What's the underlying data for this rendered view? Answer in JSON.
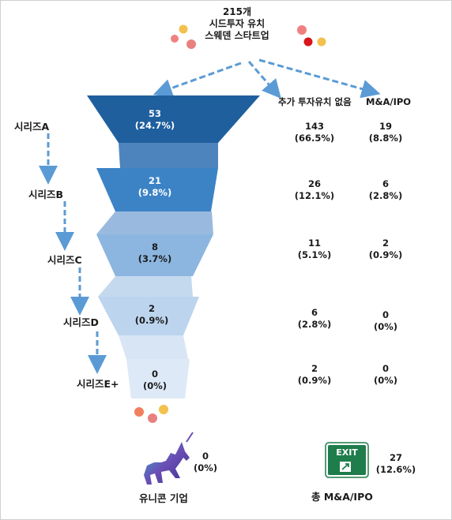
{
  "title": {
    "line1": "215개",
    "line2": "시드투자 유치",
    "line3": "스웨덴 스타트업"
  },
  "columns": {
    "no_more_investment": "추가 투자유치 없음",
    "mna_ipo": "M&A/IPO"
  },
  "stages": [
    {
      "name": "시리즈A",
      "count": "53",
      "pct": "(24.7%)",
      "no_more_count": "143",
      "no_more_pct": "(66.5%)",
      "exit_count": "19",
      "exit_pct": "(8.8%)"
    },
    {
      "name": "시리즈B",
      "count": "21",
      "pct": "(9.8%)",
      "no_more_count": "26",
      "no_more_pct": "(12.1%)",
      "exit_count": "6",
      "exit_pct": "(2.8%)"
    },
    {
      "name": "시리즈C",
      "count": "8",
      "pct": "(3.7%)",
      "no_more_count": "11",
      "no_more_pct": "(5.1%)",
      "exit_count": "2",
      "exit_pct": "(0.9%)"
    },
    {
      "name": "시리즈D",
      "count": "2",
      "pct": "(0.9%)",
      "no_more_count": "6",
      "no_more_pct": "(2.8%)",
      "exit_count": "0",
      "exit_pct": "(0%)"
    },
    {
      "name": "시리즈E+",
      "count": "0",
      "pct": "(0%)",
      "no_more_count": "2",
      "no_more_pct": "(0.9%)",
      "exit_count": "0",
      "exit_pct": "(0%)"
    }
  ],
  "unicorn": {
    "label": "유니콘 기업",
    "count": "0",
    "pct": "(0%)"
  },
  "total_exit": {
    "label": "총 M&A/IPO",
    "count": "27",
    "pct": "(12.6%)",
    "sign_text": "EXIT"
  },
  "colors": {
    "tier1": "#1f5f9e",
    "tier2": "#3c83c6",
    "tier3": "#8cb6e0",
    "tier4": "#bcd4ee",
    "tier5": "#dde9f6",
    "arrow": "#5b9bd5",
    "exit_sign": "#1e7d4a"
  }
}
